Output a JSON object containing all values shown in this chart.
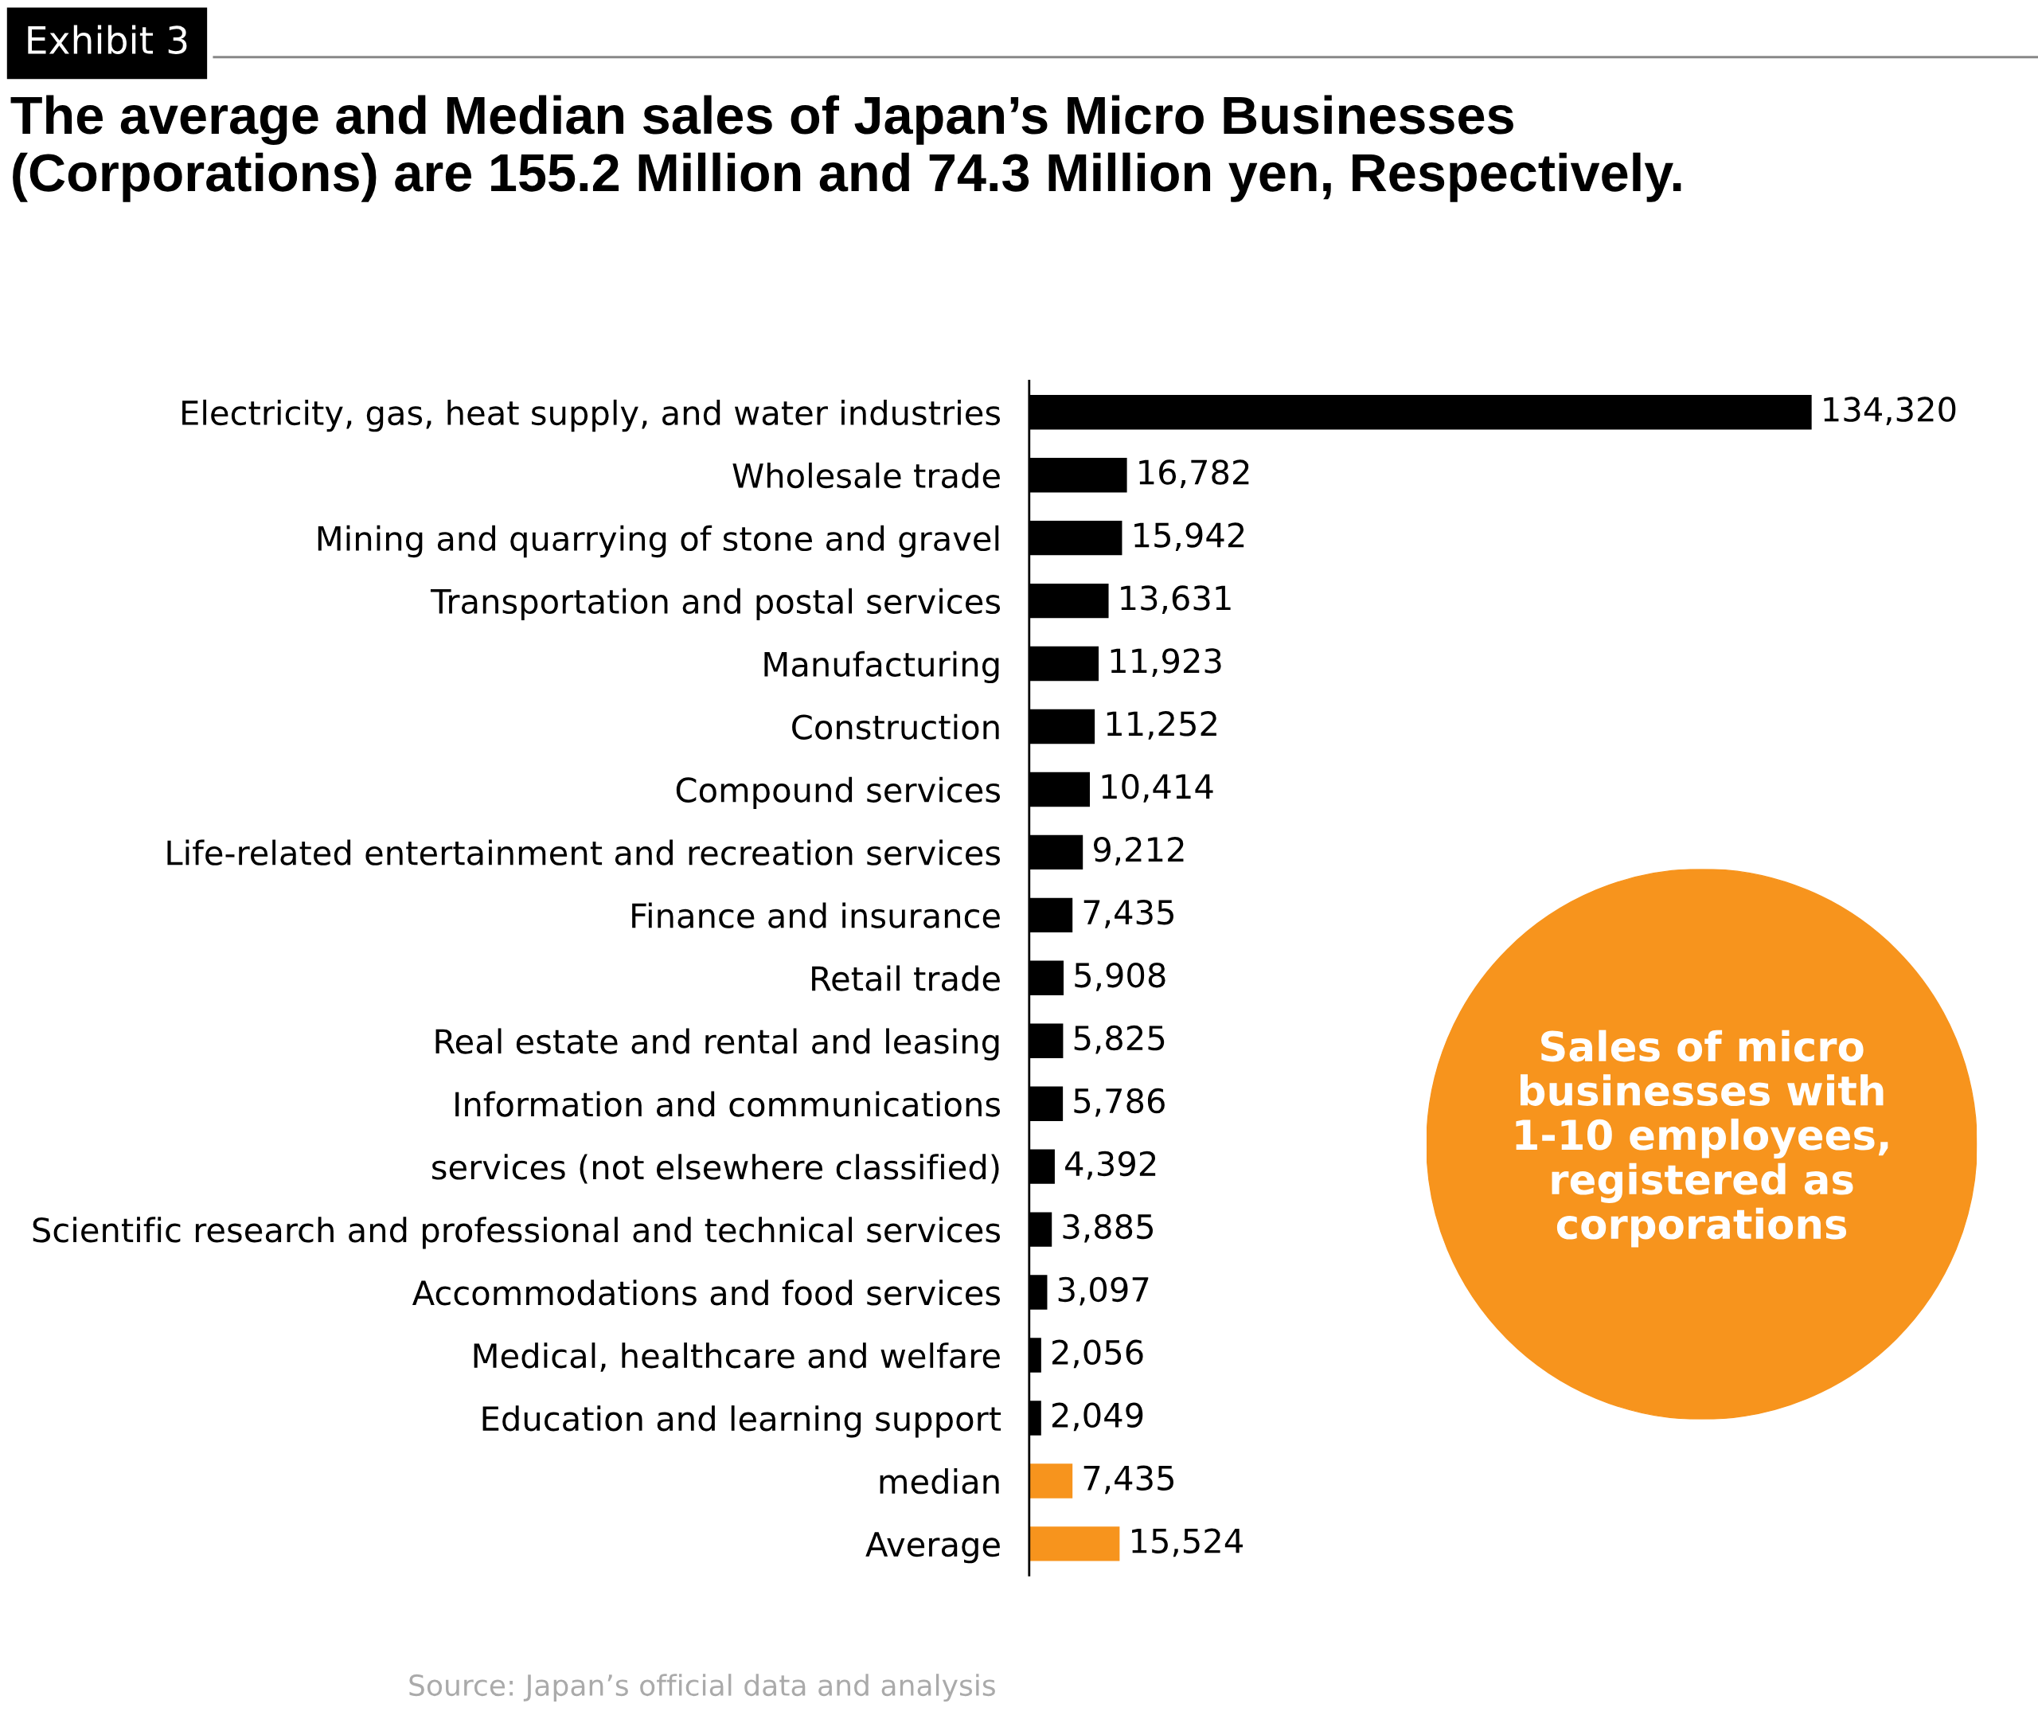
{
  "chart_data": {
    "type": "bar",
    "orientation": "horizontal",
    "title": "The average and Median sales of Japan’s Micro Businesses\n(Corporations) are 155.2 Million and 74.3 Million yen, Respectively.",
    "categories": [
      "Electricity, gas, heat supply, and water industries",
      "Wholesale trade",
      "Mining and quarrying of stone and gravel",
      "Transportation and postal services",
      "Manufacturing",
      "Construction",
      "Compound services",
      "Life-related entertainment and recreation services",
      "Finance and insurance",
      "Retail trade",
      "Real estate and rental and leasing",
      "Information and communications",
      "services (not elsewhere classified)",
      "Scientific research and professional and technical services",
      "Accommodations and food services",
      "Medical, healthcare and welfare",
      "Education and learning support",
      "median",
      "Average"
    ],
    "values": [
      134320,
      16782,
      15942,
      13631,
      11923,
      11252,
      10414,
      9212,
      7435,
      5908,
      5825,
      5786,
      4392,
      3885,
      3097,
      2056,
      2049,
      7435,
      15524
    ],
    "colors": [
      "#000000",
      "#000000",
      "#000000",
      "#000000",
      "#000000",
      "#000000",
      "#000000",
      "#000000",
      "#000000",
      "#000000",
      "#000000",
      "#000000",
      "#000000",
      "#000000",
      "#000000",
      "#000000",
      "#000000",
      "#f7941d",
      "#f7941d"
    ],
    "value_labels": [
      "134,320",
      "16,782",
      "15,942",
      "13,631",
      "11,923",
      "11,252",
      "10,414",
      "9,212",
      "7,435",
      "5,908",
      "5,825",
      "5,786",
      "4,392",
      "3,885",
      "3,097",
      "2,056",
      "2,049",
      "7,435",
      "15,524"
    ],
    "tick_labels": "y",
    "grid": false,
    "annotations": [
      "Exhibit 3",
      "Sales of micro\nbusinesses with\n1-10 employees,\nregistered as\ncorporations",
      "Source: Japan’s official data and analysis"
    ]
  }
}
